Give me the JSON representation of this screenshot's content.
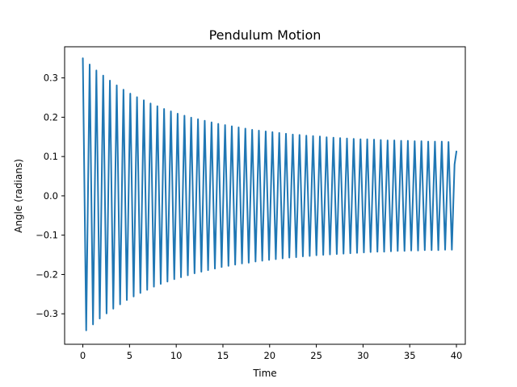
{
  "chart_data": {
    "type": "line",
    "title": "Pendulum Motion",
    "xlabel": "Time",
    "ylabel": "Angle (radians)",
    "xlim": [
      -1.95,
      40.95
    ],
    "ylim": [
      -0.3775,
      0.3792
    ],
    "xticks": [
      0,
      5,
      10,
      15,
      20,
      25,
      30,
      35,
      40
    ],
    "xtick_labels": [
      "0",
      "5",
      "10",
      "15",
      "20",
      "25",
      "30",
      "35",
      "40"
    ],
    "yticks": [
      -0.3,
      -0.2,
      -0.1,
      0.0,
      0.1,
      0.2,
      0.3
    ],
    "ytick_labels": [
      "−0.3",
      "−0.2",
      "−0.1",
      "0.0",
      "0.1",
      "0.2",
      "0.3"
    ],
    "grid": false,
    "legend": "none",
    "colors": {
      "line": "#1f77b4",
      "axes": "#000000",
      "background": "#ffffff"
    },
    "series": [
      {
        "x": [
          0,
          0.36,
          0.73,
          1.09,
          1.45,
          1.81,
          2.18,
          2.54,
          2.9,
          3.26,
          3.63,
          3.99,
          4.35,
          4.71,
          5.08,
          5.44,
          5.8,
          6.16,
          6.53,
          6.89,
          7.25,
          7.61,
          7.98,
          8.34,
          8.7,
          9.06,
          9.43,
          9.79,
          10.15,
          10.51,
          10.88,
          11.24,
          11.6,
          11.96,
          12.33,
          12.69,
          13.05,
          13.41,
          13.78,
          14.14,
          14.5,
          14.86,
          15.23,
          15.59,
          15.95,
          16.31,
          16.68,
          17.04,
          17.4,
          17.76,
          18.13,
          18.49,
          18.85,
          19.21,
          19.58,
          19.94,
          20.3,
          20.66,
          21.03,
          21.39,
          21.75,
          22.11,
          22.48,
          22.84,
          23.2,
          23.56,
          23.93,
          24.29,
          24.65,
          25.01,
          25.38,
          25.74,
          26.1,
          26.46,
          26.83,
          27.19,
          27.55,
          27.91,
          28.28,
          28.64,
          29.0,
          29.36,
          29.73,
          30.09,
          30.45,
          30.81,
          31.18,
          31.54,
          31.9,
          32.26,
          32.63,
          32.99,
          33.35,
          33.71,
          34.08,
          34.44,
          34.8,
          35.16,
          35.53,
          35.89,
          36.25,
          36.61,
          36.98,
          37.34,
          37.7,
          38.06,
          38.43,
          38.79,
          39.15,
          39.51,
          39.8,
          40.0
        ],
        "y": [
          0.35,
          -0.342,
          0.334,
          -0.327,
          0.319,
          -0.312,
          0.306,
          -0.299,
          0.293,
          -0.287,
          0.281,
          -0.276,
          0.27,
          -0.265,
          0.26,
          -0.256,
          0.251,
          -0.247,
          0.243,
          -0.239,
          0.235,
          -0.231,
          0.228,
          -0.224,
          0.221,
          -0.218,
          0.215,
          -0.212,
          0.209,
          -0.207,
          0.204,
          -0.202,
          0.199,
          -0.197,
          0.195,
          -0.193,
          0.191,
          -0.189,
          0.187,
          -0.185,
          0.183,
          -0.181,
          0.18,
          -0.178,
          0.177,
          -0.175,
          0.174,
          -0.172,
          0.171,
          -0.17,
          0.168,
          -0.167,
          0.166,
          -0.165,
          0.164,
          -0.163,
          0.162,
          -0.161,
          0.16,
          -0.159,
          0.158,
          -0.157,
          0.156,
          -0.156,
          0.155,
          -0.154,
          0.153,
          -0.153,
          0.152,
          -0.151,
          0.151,
          -0.15,
          0.149,
          -0.149,
          0.148,
          -0.148,
          0.147,
          -0.147,
          0.146,
          -0.146,
          0.145,
          -0.145,
          0.144,
          -0.144,
          0.144,
          -0.143,
          0.143,
          -0.142,
          0.142,
          -0.142,
          0.141,
          -0.141,
          0.141,
          -0.14,
          0.14,
          -0.14,
          0.14,
          -0.139,
          0.139,
          -0.139,
          0.139,
          -0.138,
          0.138,
          -0.138,
          0.138,
          -0.138,
          0.138,
          -0.137,
          0.137,
          -0.137,
          0.08,
          0.113
        ]
      }
    ]
  }
}
